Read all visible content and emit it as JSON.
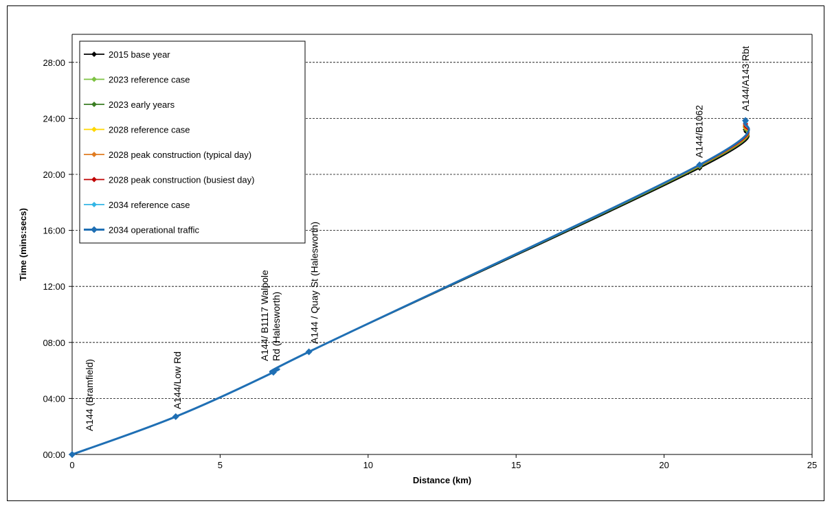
{
  "chart_data": {
    "type": "line",
    "title": "",
    "xlabel": "Distance (km)",
    "ylabel": "Time (mins:secs)",
    "xlim": [
      0,
      25
    ],
    "ylim_minutes": [
      0,
      30
    ],
    "x_ticks": [
      0,
      5,
      10,
      15,
      20,
      25
    ],
    "y_ticks": [
      "00:00",
      "04:00",
      "08:00",
      "12:00",
      "16:00",
      "20:00",
      "24:00",
      "28:00"
    ],
    "y_tick_minutes": [
      0,
      4,
      8,
      12,
      16,
      20,
      24,
      28
    ],
    "grid": "horizontal dashed",
    "legend_position": "top-left",
    "annotations": [
      {
        "x": 0,
        "lines": [
          "A144 (Bramfield)"
        ]
      },
      {
        "x": 3.5,
        "lines": [
          "A144/Low Rd"
        ]
      },
      {
        "x": 6.8,
        "lines": [
          "A144/ B1117 Walpole",
          "Rd (Halesworth)"
        ]
      },
      {
        "x": 8.0,
        "lines": [
          "A144 / Quay St (Halesworth)"
        ]
      },
      {
        "x": 21.2,
        "lines": [
          "A144/B1062"
        ]
      },
      {
        "x": 22.7,
        "lines": [
          "A144/A143 Rbt"
        ]
      }
    ],
    "series": [
      {
        "name": "2015 base year",
        "color": "#000000",
        "x": [
          0,
          3.5,
          6.8,
          8.0,
          21.2,
          22.75
        ],
        "y_minutes": [
          0,
          2.7,
          5.87,
          7.33,
          20.45,
          23.2
        ]
      },
      {
        "name": "2023 reference case",
        "color": "#7dc242",
        "x": [
          0,
          3.5,
          6.8,
          8.0,
          21.2,
          22.75
        ],
        "y_minutes": [
          0,
          2.7,
          5.87,
          7.33,
          20.55,
          23.35
        ]
      },
      {
        "name": "2023 early years",
        "color": "#3a7d22",
        "x": [
          0,
          3.5,
          6.8,
          8.0,
          21.2,
          22.75
        ],
        "y_minutes": [
          0,
          2.7,
          5.87,
          7.33,
          20.55,
          23.4
        ]
      },
      {
        "name": "2028 reference case",
        "color": "#ffd700",
        "x": [
          0,
          3.5,
          6.8,
          8.0,
          21.2,
          22.75
        ],
        "y_minutes": [
          0,
          2.7,
          5.87,
          7.33,
          20.6,
          23.45
        ]
      },
      {
        "name": "2028 peak construction (typical day)",
        "color": "#e07b20",
        "x": [
          0,
          3.5,
          6.8,
          8.0,
          21.2,
          22.75
        ],
        "y_minutes": [
          0,
          2.7,
          5.87,
          7.33,
          20.62,
          23.5
        ]
      },
      {
        "name": "2028 peak construction (busiest day)",
        "color": "#c00000",
        "x": [
          0,
          3.5,
          6.8,
          8.0,
          21.2,
          22.75
        ],
        "y_minutes": [
          0,
          2.7,
          5.87,
          7.33,
          20.64,
          23.6
        ]
      },
      {
        "name": "2034 reference case",
        "color": "#33b5e5",
        "x": [
          0,
          3.5,
          6.8,
          8.0,
          21.2,
          22.75
        ],
        "y_minutes": [
          0,
          2.7,
          5.87,
          7.33,
          20.66,
          23.75
        ]
      },
      {
        "name": "2034 operational traffic",
        "color": "#1f6fb4",
        "x": [
          0,
          3.5,
          6.8,
          8.0,
          21.2,
          22.75
        ],
        "y_minutes": [
          0,
          2.7,
          5.87,
          7.33,
          20.68,
          23.85
        ]
      }
    ]
  }
}
